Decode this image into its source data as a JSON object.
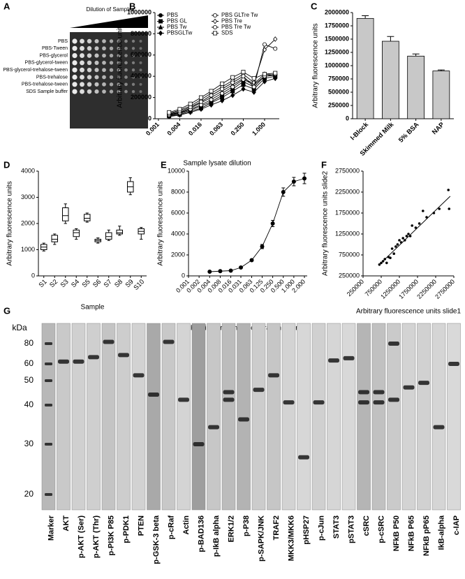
{
  "panel_a": {
    "label": "A",
    "title": "Dilution of Samples",
    "rows": [
      "PBS",
      "PBS-Tween",
      "PBS-glycerol",
      "PBS-glycerol-tween",
      "PBS-glycerol-trehalose-tween",
      "PBS-trehalose",
      "PBS-trehalose-tween",
      "SDS Sample buffer"
    ]
  },
  "chart_data": [
    {
      "type": "line",
      "label": "B",
      "xscale": "log",
      "ylabel": "Arbitrary fluorescence units",
      "xlabel": "Sample lysate dilution",
      "x": [
        0.002,
        0.004,
        0.008,
        0.016,
        0.031,
        0.063,
        0.125,
        0.25,
        0.5,
        1,
        2
      ],
      "xlim": [
        0.0008,
        2.6
      ],
      "xticks": [
        0.001,
        0.004,
        0.016,
        0.063,
        {
          "value": 0.25,
          "label": "0.250"
        },
        {
          "value": 1,
          "label": "1.000"
        }
      ],
      "ylim": [
        0,
        1000000
      ],
      "yticks": [
        0,
        200000,
        400000,
        600000,
        800000,
        1000000
      ],
      "series": [
        {
          "name": "PBS",
          "color": "#000000",
          "marker": "circle",
          "filled": true,
          "values": [
            30000,
            50000,
            80000,
            120000,
            160000,
            220000,
            280000,
            350000,
            300000,
            400000,
            410000
          ]
        },
        {
          "name": "PBS GL",
          "color": "#000000",
          "marker": "square",
          "filled": true,
          "values": [
            25000,
            40000,
            70000,
            100000,
            150000,
            200000,
            260000,
            320000,
            280000,
            380000,
            400000
          ]
        },
        {
          "name": "PBS Tw",
          "color": "#000000",
          "marker": "triangle",
          "filled": true,
          "values": [
            40000,
            60000,
            100000,
            150000,
            200000,
            260000,
            320000,
            380000,
            330000,
            420000,
            410000
          ]
        },
        {
          "name": "PBSGLTw",
          "color": "#000000",
          "marker": "diamond",
          "filled": true,
          "values": [
            20000,
            35000,
            60000,
            90000,
            130000,
            170000,
            220000,
            280000,
            250000,
            350000,
            380000
          ]
        },
        {
          "name": "PBS GLTre Tw",
          "color": "#000000",
          "marker": "circle",
          "filled": false,
          "values": [
            35000,
            55000,
            90000,
            130000,
            180000,
            240000,
            300000,
            370000,
            320000,
            400000,
            420000
          ]
        },
        {
          "name": "PBS Tre",
          "color": "#000000",
          "marker": "diamond",
          "filled": false,
          "values": [
            50000,
            80000,
            120000,
            180000,
            240000,
            300000,
            360000,
            420000,
            340000,
            650000,
            750000
          ]
        },
        {
          "name": "PBS Tre Tw",
          "color": "#000000",
          "marker": "circle",
          "filled": false,
          "values": [
            45000,
            70000,
            110000,
            160000,
            220000,
            280000,
            340000,
            400000,
            300000,
            700000,
            660000
          ]
        },
        {
          "name": "SDS",
          "color": "#000000",
          "marker": "square",
          "filled": false,
          "values": [
            60000,
            90000,
            140000,
            200000,
            260000,
            330000,
            390000,
            440000,
            380000,
            420000,
            430000
          ]
        }
      ]
    },
    {
      "type": "bar",
      "label": "C",
      "ylabel": "Arbitrary fluorescence units",
      "color": "#c8c8c8",
      "categories": [
        "I-Block",
        "Skimmed Milk",
        "5% BSA",
        "NAP"
      ],
      "values": [
        1890000,
        1460000,
        1180000,
        900000
      ],
      "errors": [
        50000,
        90000,
        40000,
        20000
      ],
      "ylim": [
        0,
        2000000
      ],
      "yticks": [
        0,
        250000,
        500000,
        750000,
        1000000,
        1250000,
        1500000,
        1750000,
        2000000
      ]
    },
    {
      "type": "box",
      "label": "D",
      "ylabel": "Arbitrary fluorescence units",
      "xlabel": "Sample",
      "categories": [
        "S1",
        "S2",
        "S3",
        "S4",
        "S5",
        "S6",
        "S7",
        "S8",
        "S9",
        "S10"
      ],
      "boxes": [
        {
          "min": 950,
          "q1": 1000,
          "median": 1100,
          "q3": 1200,
          "max": 1250
        },
        {
          "min": 1200,
          "q1": 1300,
          "median": 1400,
          "q3": 1550,
          "max": 1600
        },
        {
          "min": 2000,
          "q1": 2100,
          "median": 2300,
          "q3": 2600,
          "max": 2750
        },
        {
          "min": 1400,
          "q1": 1500,
          "median": 1650,
          "q3": 1750,
          "max": 1800
        },
        {
          "min": 2050,
          "q1": 2100,
          "median": 2200,
          "q3": 2350,
          "max": 2400
        },
        {
          "min": 1250,
          "q1": 1300,
          "median": 1350,
          "q3": 1400,
          "max": 1450
        },
        {
          "min": 1350,
          "q1": 1400,
          "median": 1500,
          "q3": 1650,
          "max": 1750
        },
        {
          "min": 1550,
          "q1": 1600,
          "median": 1650,
          "q3": 1750,
          "max": 1900
        },
        {
          "min": 3100,
          "q1": 3200,
          "median": 3400,
          "q3": 3600,
          "max": 3750
        },
        {
          "min": 1400,
          "q1": 1600,
          "median": 1700,
          "q3": 1800,
          "max": 1850
        }
      ],
      "ylim": [
        0,
        4000
      ],
      "yticks": [
        0,
        1000,
        2000,
        3000,
        4000
      ]
    },
    {
      "type": "line",
      "label": "E",
      "xscale": "log",
      "ylabel": "Arbitrary fluorescence units",
      "xlabel": "Printing protein concentration (µg/ml)",
      "x": [
        0.004,
        0.008,
        0.016,
        0.031,
        0.063,
        0.125,
        0.25,
        0.5,
        1,
        2
      ],
      "xlim": [
        0.001,
        2.4
      ],
      "xticks": [
        0.001,
        0.002,
        0.004,
        0.008,
        0.016,
        0.031,
        0.063,
        0.125,
        {
          "value": 0.25,
          "label": "0.250"
        },
        {
          "value": 0.5,
          "label": "0.500"
        },
        {
          "value": 1,
          "label": "1.000"
        },
        {
          "value": 2,
          "label": "2.000"
        }
      ],
      "ylim": [
        0,
        10000
      ],
      "yticks": [
        0,
        2000,
        4000,
        6000,
        8000,
        10000
      ],
      "series": [
        {
          "color": "#000000",
          "marker": "circle",
          "filled": true,
          "values": [
            400,
            450,
            500,
            800,
            1500,
            2800,
            5000,
            8000,
            9000,
            9300
          ],
          "errors": [
            0,
            0,
            0,
            0,
            100,
            200,
            300,
            400,
            400,
            500
          ]
        }
      ]
    },
    {
      "type": "scatter",
      "label": "F",
      "xlabel": "Arbitrary fluorescence units slide1",
      "ylabel": "Arbitrary fluorescence units slide2",
      "color": "#000000",
      "x": [
        700000,
        750000,
        800000,
        850000,
        900000,
        950000,
        1000000,
        1050000,
        1100000,
        1150000,
        1200000,
        1250000,
        1300000,
        1350000,
        1400000,
        1450000,
        1500000,
        1550000,
        1600000,
        1700000,
        1800000,
        1900000,
        2000000,
        2200000,
        2350000,
        2600000,
        2620000
      ],
      "y": [
        520000,
        560000,
        600000,
        650000,
        560000,
        700000,
        680000,
        900000,
        780000,
        950000,
        1000000,
        1100000,
        1050000,
        1150000,
        1100000,
        1200000,
        1250000,
        1200000,
        1450000,
        1400000,
        1500000,
        1800000,
        1650000,
        1750000,
        1850000,
        2300000,
        1850000
      ],
      "fit": {
        "x": [
          700000,
          2650000
        ],
        "y": [
          520000,
          2150000
        ]
      },
      "xlim": [
        250000,
        2750000
      ],
      "xticks": [
        250000,
        750000,
        1250000,
        1750000,
        2250000,
        2750000
      ],
      "ylim": [
        250000,
        2750000
      ],
      "yticks": [
        250000,
        750000,
        1250000,
        1750000,
        2250000,
        2750000
      ]
    }
  ],
  "panel_g": {
    "label": "G",
    "unit": "kDa",
    "ladder": [
      80,
      60,
      50,
      40,
      30,
      20
    ],
    "lanes": [
      {
        "name": "Marker"
      },
      {
        "name": "AKT",
        "bands": [
          62
        ]
      },
      {
        "name": "p-AKT (Ser)",
        "bands": [
          62
        ]
      },
      {
        "name": "p-AKT (Thr)",
        "bands": [
          66
        ]
      },
      {
        "name": "p-PI3K P85",
        "bands": [
          82
        ]
      },
      {
        "name": "p-PDK1",
        "bands": [
          68
        ]
      },
      {
        "name": "PTEN",
        "bands": [
          53
        ]
      },
      {
        "name": "p-GSK-3 beta",
        "bands": [
          44
        ]
      },
      {
        "name": "p-cRaf",
        "bands": [
          82
        ]
      },
      {
        "name": "Actin",
        "bands": [
          42
        ]
      },
      {
        "name": "p-BAD136",
        "bands": [
          30
        ]
      },
      {
        "name": "p-IkB alpha",
        "bands": [
          34
        ]
      },
      {
        "name": "ERK1/2",
        "bands": [
          45,
          42
        ]
      },
      {
        "name": "p-P38",
        "bands": [
          36
        ]
      },
      {
        "name": "p-SAPK/JNK",
        "bands": [
          46
        ]
      },
      {
        "name": "TRAF2",
        "bands": [
          53
        ]
      },
      {
        "name": "MKK3/MKK6",
        "bands": [
          41
        ]
      },
      {
        "name": "pHSP27",
        "bands": [
          27
        ]
      },
      {
        "name": "p-cJun",
        "bands": [
          41
        ]
      },
      {
        "name": "STAT3",
        "bands": [
          63
        ]
      },
      {
        "name": "pSTAT3",
        "bands": [
          65
        ]
      },
      {
        "name": "cSRC",
        "bands": [
          45,
          41
        ]
      },
      {
        "name": "p-cSRC",
        "bands": [
          45,
          41
        ]
      },
      {
        "name": "NFkB P50",
        "bands": [
          80,
          42
        ]
      },
      {
        "name": "NFkB P65",
        "bands": [
          47
        ]
      },
      {
        "name": "NFkB pP65",
        "bands": [
          49
        ]
      },
      {
        "name": "IkB-alpha",
        "bands": [
          34
        ]
      },
      {
        "name": "c-IAP",
        "bands": [
          60
        ]
      }
    ]
  }
}
